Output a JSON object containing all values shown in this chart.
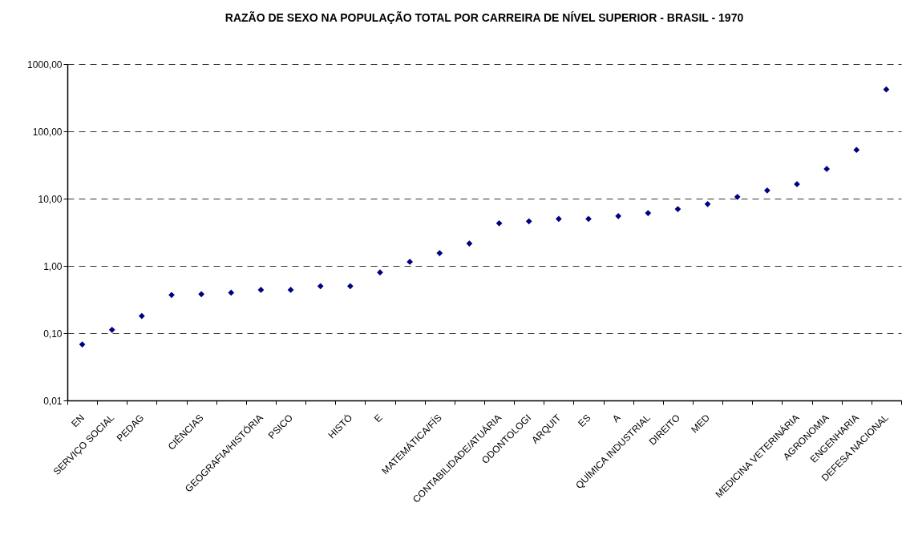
{
  "chart_data": {
    "type": "scatter",
    "title": "RAZÃO DE SEXO NA POPULAÇÃO TOTAL POR CARREIRA DE NÍVEL SUPERIOR - BRASIL - 1970",
    "categories": [
      "EN",
      "SERVIÇO SOCIAL",
      "PEDAG",
      null,
      "CIÊNCIAS",
      null,
      "GEOGRAFIA/HISTÓRIA",
      "PSICO",
      null,
      "HISTÓ",
      "E",
      null,
      "MATEMÁTICA/FÍS",
      null,
      "CONTABILIDADE/ATUÁRIA",
      "ODONTOLOGI",
      "ARQUIT",
      "ES",
      "A",
      "QUÍMICA INDUSTRIAL",
      "DIREITO",
      "MED",
      null,
      null,
      "MEDICINA VETERINÁRIA",
      "AGRONOMIA",
      "ENGENHARIA",
      "DEFESA NACIONAL"
    ],
    "series": [
      {
        "color": "#000080",
        "values": [
          0.068,
          0.112,
          0.18,
          0.37,
          0.38,
          0.4,
          0.44,
          0.44,
          0.5,
          0.5,
          0.8,
          1.15,
          1.55,
          2.15,
          4.3,
          4.6,
          5.0,
          5.0,
          5.5,
          6.1,
          7.0,
          8.3,
          10.6,
          13.2,
          16.4,
          27.6,
          53,
          420
        ]
      }
    ],
    "log": "y",
    "ylim": [
      0.01,
      1000
    ],
    "yticks": [
      {
        "value": 0.01,
        "label": "0,01"
      },
      {
        "value": 0.1,
        "label": "0,10"
      },
      {
        "value": 1,
        "label": "1,00"
      },
      {
        "value": 10,
        "label": "10,00"
      },
      {
        "value": 100,
        "label": "100,00"
      },
      {
        "value": 1000,
        "label": "1000,00"
      }
    ],
    "grid": "y",
    "marker": "diamond",
    "legend": false
  }
}
